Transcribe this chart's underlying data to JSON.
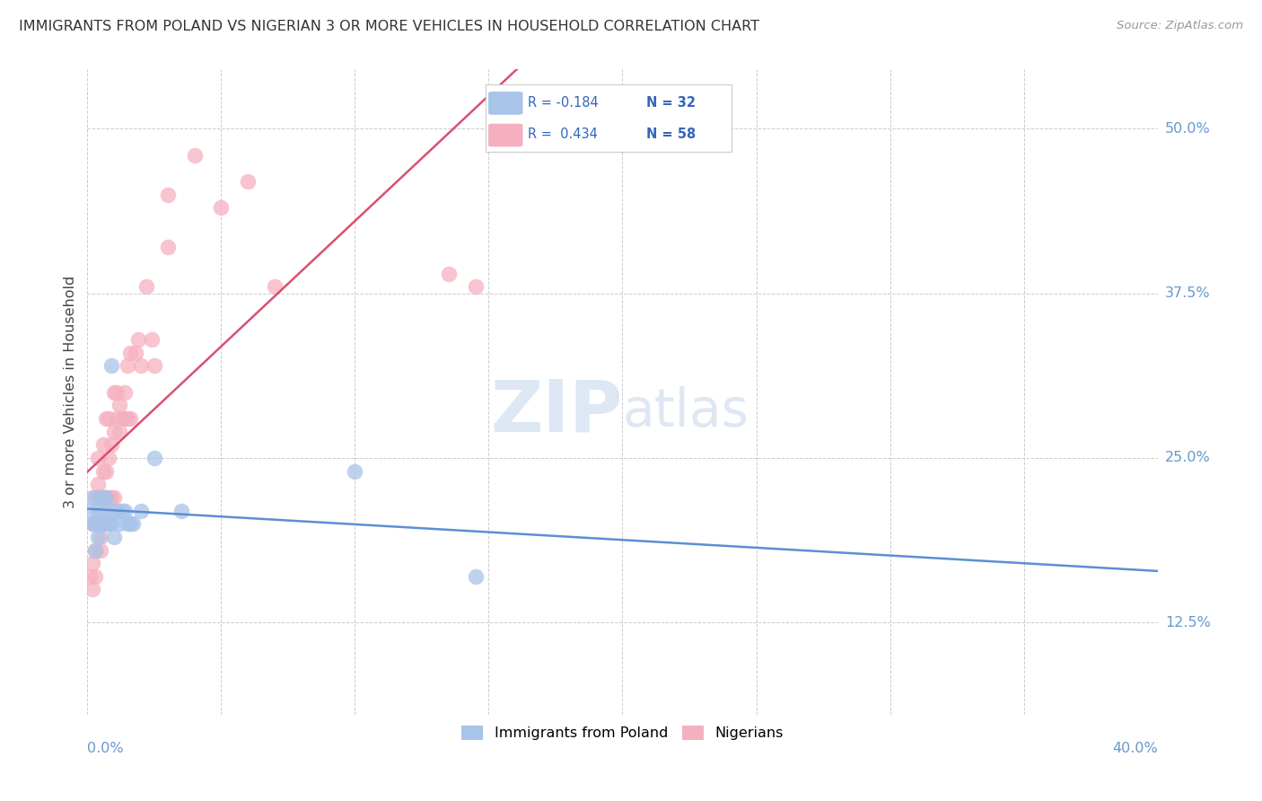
{
  "title": "IMMIGRANTS FROM POLAND VS NIGERIAN 3 OR MORE VEHICLES IN HOUSEHOLD CORRELATION CHART",
  "source": "Source: ZipAtlas.com",
  "ylabel": "3 or more Vehicles in Household",
  "ytick_labels": [
    "12.5%",
    "25.0%",
    "37.5%",
    "50.0%"
  ],
  "ytick_values": [
    0.125,
    0.25,
    0.375,
    0.5
  ],
  "xlim": [
    0.0,
    0.4
  ],
  "ylim": [
    0.055,
    0.545
  ],
  "legend_label1": "Immigrants from Poland",
  "legend_label2": "Nigerians",
  "blue_color": "#a8c4e8",
  "pink_color": "#f5b0bf",
  "blue_line_color": "#5b8fd4",
  "pink_line_color": "#d95070",
  "background_color": "#ffffff",
  "grid_color": "#cccccc",
  "poland_x": [
    0.001,
    0.002,
    0.002,
    0.003,
    0.003,
    0.004,
    0.004,
    0.004,
    0.005,
    0.005,
    0.006,
    0.006,
    0.006,
    0.007,
    0.007,
    0.008,
    0.009,
    0.009,
    0.01,
    0.01,
    0.011,
    0.012,
    0.013,
    0.014,
    0.015,
    0.016,
    0.017,
    0.02,
    0.025,
    0.035,
    0.1,
    0.145
  ],
  "poland_y": [
    0.21,
    0.22,
    0.2,
    0.2,
    0.18,
    0.21,
    0.2,
    0.19,
    0.22,
    0.2,
    0.21,
    0.2,
    0.22,
    0.2,
    0.22,
    0.2,
    0.32,
    0.2,
    0.19,
    0.21,
    0.21,
    0.2,
    0.21,
    0.21,
    0.2,
    0.2,
    0.2,
    0.21,
    0.25,
    0.21,
    0.24,
    0.16
  ],
  "nigeria_x": [
    0.001,
    0.002,
    0.002,
    0.002,
    0.003,
    0.003,
    0.003,
    0.003,
    0.004,
    0.004,
    0.004,
    0.004,
    0.005,
    0.005,
    0.005,
    0.005,
    0.005,
    0.006,
    0.006,
    0.006,
    0.006,
    0.007,
    0.007,
    0.007,
    0.007,
    0.008,
    0.008,
    0.008,
    0.009,
    0.009,
    0.01,
    0.01,
    0.01,
    0.011,
    0.011,
    0.012,
    0.012,
    0.013,
    0.014,
    0.014,
    0.015,
    0.015,
    0.016,
    0.016,
    0.018,
    0.019,
    0.02,
    0.022,
    0.024,
    0.025,
    0.03,
    0.03,
    0.04,
    0.05,
    0.06,
    0.07,
    0.135,
    0.145
  ],
  "nigeria_y": [
    0.16,
    0.15,
    0.17,
    0.2,
    0.16,
    0.18,
    0.22,
    0.2,
    0.2,
    0.22,
    0.25,
    0.23,
    0.2,
    0.22,
    0.2,
    0.18,
    0.19,
    0.2,
    0.21,
    0.24,
    0.26,
    0.22,
    0.2,
    0.24,
    0.28,
    0.22,
    0.25,
    0.28,
    0.26,
    0.22,
    0.27,
    0.22,
    0.3,
    0.28,
    0.3,
    0.27,
    0.29,
    0.28,
    0.28,
    0.3,
    0.28,
    0.32,
    0.33,
    0.28,
    0.33,
    0.34,
    0.32,
    0.38,
    0.34,
    0.32,
    0.41,
    0.45,
    0.48,
    0.44,
    0.46,
    0.38,
    0.39,
    0.38
  ]
}
